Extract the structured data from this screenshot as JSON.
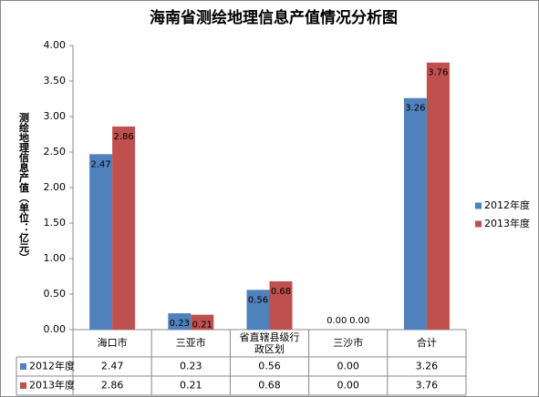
{
  "chart_data": {
    "type": "bar",
    "title": "海南省测绘地理信息产值情况分析图",
    "y_label": "测绘地理信息产值（单位：亿元）",
    "categories": [
      "海口市",
      "三亚市",
      "省直辖县级行政区划",
      "三沙市",
      "合计"
    ],
    "series": [
      {
        "name": "2012年度",
        "color": "#4f81bd",
        "values": [
          2.47,
          0.23,
          0.56,
          0,
          3.26
        ],
        "value_labels": [
          "2.47",
          "0.23",
          "0.56",
          "0.00",
          "3.26"
        ]
      },
      {
        "name": "2013年度",
        "color": "#c0504d",
        "values": [
          2.86,
          0.21,
          0.68,
          0,
          3.76
        ],
        "value_labels": [
          "2.86",
          "0.21",
          "0.68",
          "0.00",
          "3.76"
        ]
      }
    ],
    "ylim": [
      0,
      4
    ],
    "yticks": [
      {
        "value": 0,
        "label": "0.00"
      },
      {
        "value": 0.5,
        "label": "0.50"
      },
      {
        "value": 1,
        "label": "1.00"
      },
      {
        "value": 1.5,
        "label": "1.50"
      },
      {
        "value": 2,
        "label": "2.00"
      },
      {
        "value": 2.5,
        "label": "2.50"
      },
      {
        "value": 3,
        "label": "3.00"
      },
      {
        "value": 3.5,
        "label": "3.50"
      },
      {
        "value": 4,
        "label": "4.00"
      }
    ],
    "legend": "right",
    "data_table": true
  }
}
